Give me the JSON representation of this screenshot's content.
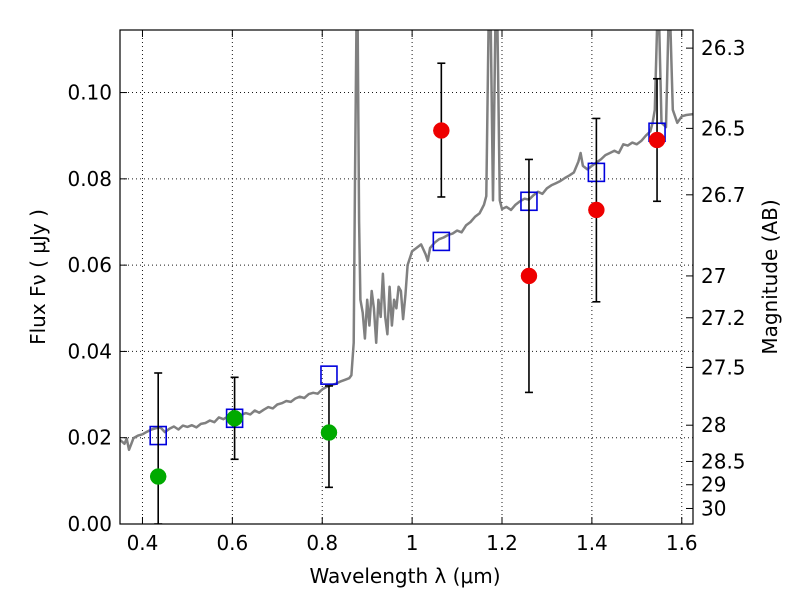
{
  "chart_data": {
    "type": "scatter",
    "title": "",
    "xlabel": "Wavelength  λ (μm)",
    "ylabel": "Flux  Fν  ( μJy )",
    "ylabel_right": "Magnitude (AB)",
    "xlim": [
      0.35,
      1.625
    ],
    "ylim": [
      0.0,
      0.1145
    ],
    "x_ticks": [
      {
        "value": 0.4,
        "label": "0.4"
      },
      {
        "value": 0.6,
        "label": "0.6"
      },
      {
        "value": 0.8,
        "label": "0.8"
      },
      {
        "value": 1.0,
        "label": "1"
      },
      {
        "value": 1.2,
        "label": "1.2"
      },
      {
        "value": 1.4,
        "label": "1.4"
      },
      {
        "value": 1.6,
        "label": "1.6"
      }
    ],
    "y_ticks": [
      {
        "value": 0.0,
        "label": "0.00"
      },
      {
        "value": 0.02,
        "label": "0.02"
      },
      {
        "value": 0.04,
        "label": "0.04"
      },
      {
        "value": 0.06,
        "label": "0.06"
      },
      {
        "value": 0.08,
        "label": "0.08"
      },
      {
        "value": 0.1,
        "label": "0.10"
      }
    ],
    "right_ticks": [
      {
        "flux": 0.1103,
        "label": "26.3"
      },
      {
        "flux": 0.0917,
        "label": "26.5"
      },
      {
        "flux": 0.0763,
        "label": "26.7"
      },
      {
        "flux": 0.0575,
        "label": "27"
      },
      {
        "flux": 0.0478,
        "label": "27.2"
      },
      {
        "flux": 0.0363,
        "label": "27.5"
      },
      {
        "flux": 0.0229,
        "label": "28"
      },
      {
        "flux": 0.0145,
        "label": "28.5"
      },
      {
        "flux": 0.0091,
        "label": "29"
      },
      {
        "flux": 0.0036,
        "label": "30"
      }
    ],
    "grid": true,
    "colors": {
      "model": "#808080",
      "square": "#0000dd",
      "green": "#00aa00",
      "red": "#ee0000",
      "errorbar": "#000000"
    },
    "series": [
      {
        "kind": "line",
        "color": "#808080",
        "points": [
          [
            0.35,
            0.0195
          ],
          [
            0.36,
            0.0186
          ],
          [
            0.365,
            0.0198
          ],
          [
            0.37,
            0.0172
          ],
          [
            0.375,
            0.0185
          ],
          [
            0.38,
            0.0199
          ],
          [
            0.39,
            0.0205
          ],
          [
            0.4,
            0.0208
          ],
          [
            0.41,
            0.0214
          ],
          [
            0.42,
            0.0219
          ],
          [
            0.43,
            0.0222
          ],
          [
            0.44,
            0.0224
          ],
          [
            0.45,
            0.0213
          ],
          [
            0.46,
            0.0221
          ],
          [
            0.47,
            0.0226
          ],
          [
            0.48,
            0.0219
          ],
          [
            0.49,
            0.0228
          ],
          [
            0.5,
            0.0225
          ],
          [
            0.51,
            0.0229
          ],
          [
            0.52,
            0.0224
          ],
          [
            0.53,
            0.0232
          ],
          [
            0.54,
            0.0234
          ],
          [
            0.55,
            0.024
          ],
          [
            0.56,
            0.0236
          ],
          [
            0.57,
            0.0247
          ],
          [
            0.58,
            0.0243
          ],
          [
            0.59,
            0.0249
          ],
          [
            0.6,
            0.025
          ],
          [
            0.61,
            0.0245
          ],
          [
            0.62,
            0.0253
          ],
          [
            0.63,
            0.0257
          ],
          [
            0.64,
            0.0254
          ],
          [
            0.65,
            0.0263
          ],
          [
            0.66,
            0.0258
          ],
          [
            0.67,
            0.0265
          ],
          [
            0.68,
            0.0271
          ],
          [
            0.69,
            0.0268
          ],
          [
            0.7,
            0.0277
          ],
          [
            0.71,
            0.028
          ],
          [
            0.72,
            0.0285
          ],
          [
            0.73,
            0.0283
          ],
          [
            0.74,
            0.0291
          ],
          [
            0.75,
            0.0295
          ],
          [
            0.76,
            0.0292
          ],
          [
            0.77,
            0.0301
          ],
          [
            0.78,
            0.0304
          ],
          [
            0.79,
            0.0302
          ],
          [
            0.8,
            0.0312
          ],
          [
            0.81,
            0.0318
          ],
          [
            0.82,
            0.0322
          ],
          [
            0.83,
            0.0325
          ],
          [
            0.84,
            0.033
          ],
          [
            0.85,
            0.0334
          ],
          [
            0.86,
            0.0338
          ],
          [
            0.865,
            0.0345
          ],
          [
            0.87,
            0.042
          ],
          [
            0.873,
            0.08
          ],
          [
            0.876,
            0.1145
          ],
          [
            0.879,
            0.1145
          ],
          [
            0.882,
            0.07
          ],
          [
            0.885,
            0.052
          ],
          [
            0.89,
            0.049
          ],
          [
            0.895,
            0.043
          ],
          [
            0.9,
            0.052
          ],
          [
            0.905,
            0.046
          ],
          [
            0.91,
            0.054
          ],
          [
            0.915,
            0.05
          ],
          [
            0.92,
            0.042
          ],
          [
            0.925,
            0.052
          ],
          [
            0.93,
            0.048
          ],
          [
            0.935,
            0.058
          ],
          [
            0.94,
            0.048
          ],
          [
            0.945,
            0.044
          ],
          [
            0.95,
            0.055
          ],
          [
            0.955,
            0.046
          ],
          [
            0.96,
            0.052
          ],
          [
            0.965,
            0.05
          ],
          [
            0.97,
            0.055
          ],
          [
            0.975,
            0.054
          ],
          [
            0.98,
            0.0475
          ],
          [
            0.985,
            0.053
          ],
          [
            0.99,
            0.06
          ],
          [
            1.0,
            0.0632
          ],
          [
            1.01,
            0.064
          ],
          [
            1.02,
            0.0648
          ],
          [
            1.03,
            0.0625
          ],
          [
            1.035,
            0.061
          ],
          [
            1.04,
            0.064
          ],
          [
            1.05,
            0.0652
          ],
          [
            1.06,
            0.066
          ],
          [
            1.07,
            0.0664
          ],
          [
            1.08,
            0.067
          ],
          [
            1.09,
            0.0673
          ],
          [
            1.1,
            0.068
          ],
          [
            1.11,
            0.0676
          ],
          [
            1.12,
            0.0692
          ],
          [
            1.13,
            0.07
          ],
          [
            1.14,
            0.0712
          ],
          [
            1.15,
            0.072
          ],
          [
            1.155,
            0.073
          ],
          [
            1.16,
            0.074
          ],
          [
            1.165,
            0.076
          ],
          [
            1.17,
            0.1145
          ],
          [
            1.175,
            0.1145
          ],
          [
            1.18,
            0.075
          ],
          [
            1.185,
            0.1145
          ],
          [
            1.19,
            0.1145
          ],
          [
            1.195,
            0.075
          ],
          [
            1.2,
            0.073
          ],
          [
            1.21,
            0.0735
          ],
          [
            1.22,
            0.0728
          ],
          [
            1.23,
            0.074
          ],
          [
            1.24,
            0.0748
          ],
          [
            1.25,
            0.0754
          ],
          [
            1.26,
            0.0752
          ],
          [
            1.27,
            0.0762
          ],
          [
            1.28,
            0.077
          ],
          [
            1.29,
            0.0765
          ],
          [
            1.3,
            0.0778
          ],
          [
            1.31,
            0.0785
          ],
          [
            1.32,
            0.079
          ],
          [
            1.33,
            0.0795
          ],
          [
            1.34,
            0.0802
          ],
          [
            1.35,
            0.0808
          ],
          [
            1.36,
            0.0815
          ],
          [
            1.37,
            0.084
          ],
          [
            1.375,
            0.086
          ],
          [
            1.38,
            0.083
          ],
          [
            1.39,
            0.0822
          ],
          [
            1.4,
            0.083
          ],
          [
            1.41,
            0.0838
          ],
          [
            1.42,
            0.0845
          ],
          [
            1.43,
            0.0855
          ],
          [
            1.44,
            0.086
          ],
          [
            1.45,
            0.0865
          ],
          [
            1.46,
            0.086
          ],
          [
            1.47,
            0.088
          ],
          [
            1.48,
            0.0877
          ],
          [
            1.49,
            0.0884
          ],
          [
            1.5,
            0.088
          ],
          [
            1.51,
            0.0888
          ],
          [
            1.52,
            0.09
          ],
          [
            1.53,
            0.091
          ],
          [
            1.535,
            0.093
          ],
          [
            1.54,
            0.096
          ],
          [
            1.545,
            0.1145
          ],
          [
            1.55,
            0.1145
          ],
          [
            1.555,
            0.093
          ],
          [
            1.56,
            0.0925
          ],
          [
            1.565,
            0.092
          ],
          [
            1.57,
            0.1145
          ],
          [
            1.575,
            0.1145
          ],
          [
            1.58,
            0.096
          ],
          [
            1.59,
            0.093
          ],
          [
            1.6,
            0.0945
          ],
          [
            1.61,
            0.0948
          ],
          [
            1.625,
            0.095
          ]
        ]
      },
      {
        "kind": "square",
        "color": "#0000dd",
        "points": [
          [
            0.435,
            0.0205
          ],
          [
            0.605,
            0.0245
          ],
          [
            0.815,
            0.0345
          ],
          [
            1.065,
            0.0655
          ],
          [
            1.26,
            0.0748
          ],
          [
            1.41,
            0.0815
          ],
          [
            1.545,
            0.0908
          ]
        ]
      },
      {
        "kind": "circle",
        "color": "#00aa00",
        "points": [
          {
            "x": 0.435,
            "y": 0.011,
            "lo": 0.0,
            "hi": 0.035
          },
          {
            "x": 0.605,
            "y": 0.0245,
            "lo": 0.015,
            "hi": 0.034
          },
          {
            "x": 0.815,
            "y": 0.0212,
            "lo": 0.0085,
            "hi": 0.032
          }
        ]
      },
      {
        "kind": "circle",
        "color": "#ee0000",
        "points": [
          {
            "x": 1.065,
            "y": 0.0912,
            "lo": 0.0758,
            "hi": 0.1068
          },
          {
            "x": 1.26,
            "y": 0.0575,
            "lo": 0.0305,
            "hi": 0.0845
          },
          {
            "x": 1.41,
            "y": 0.0728,
            "lo": 0.0515,
            "hi": 0.094
          },
          {
            "x": 1.545,
            "y": 0.089,
            "lo": 0.0748,
            "hi": 0.1032
          }
        ]
      }
    ]
  }
}
